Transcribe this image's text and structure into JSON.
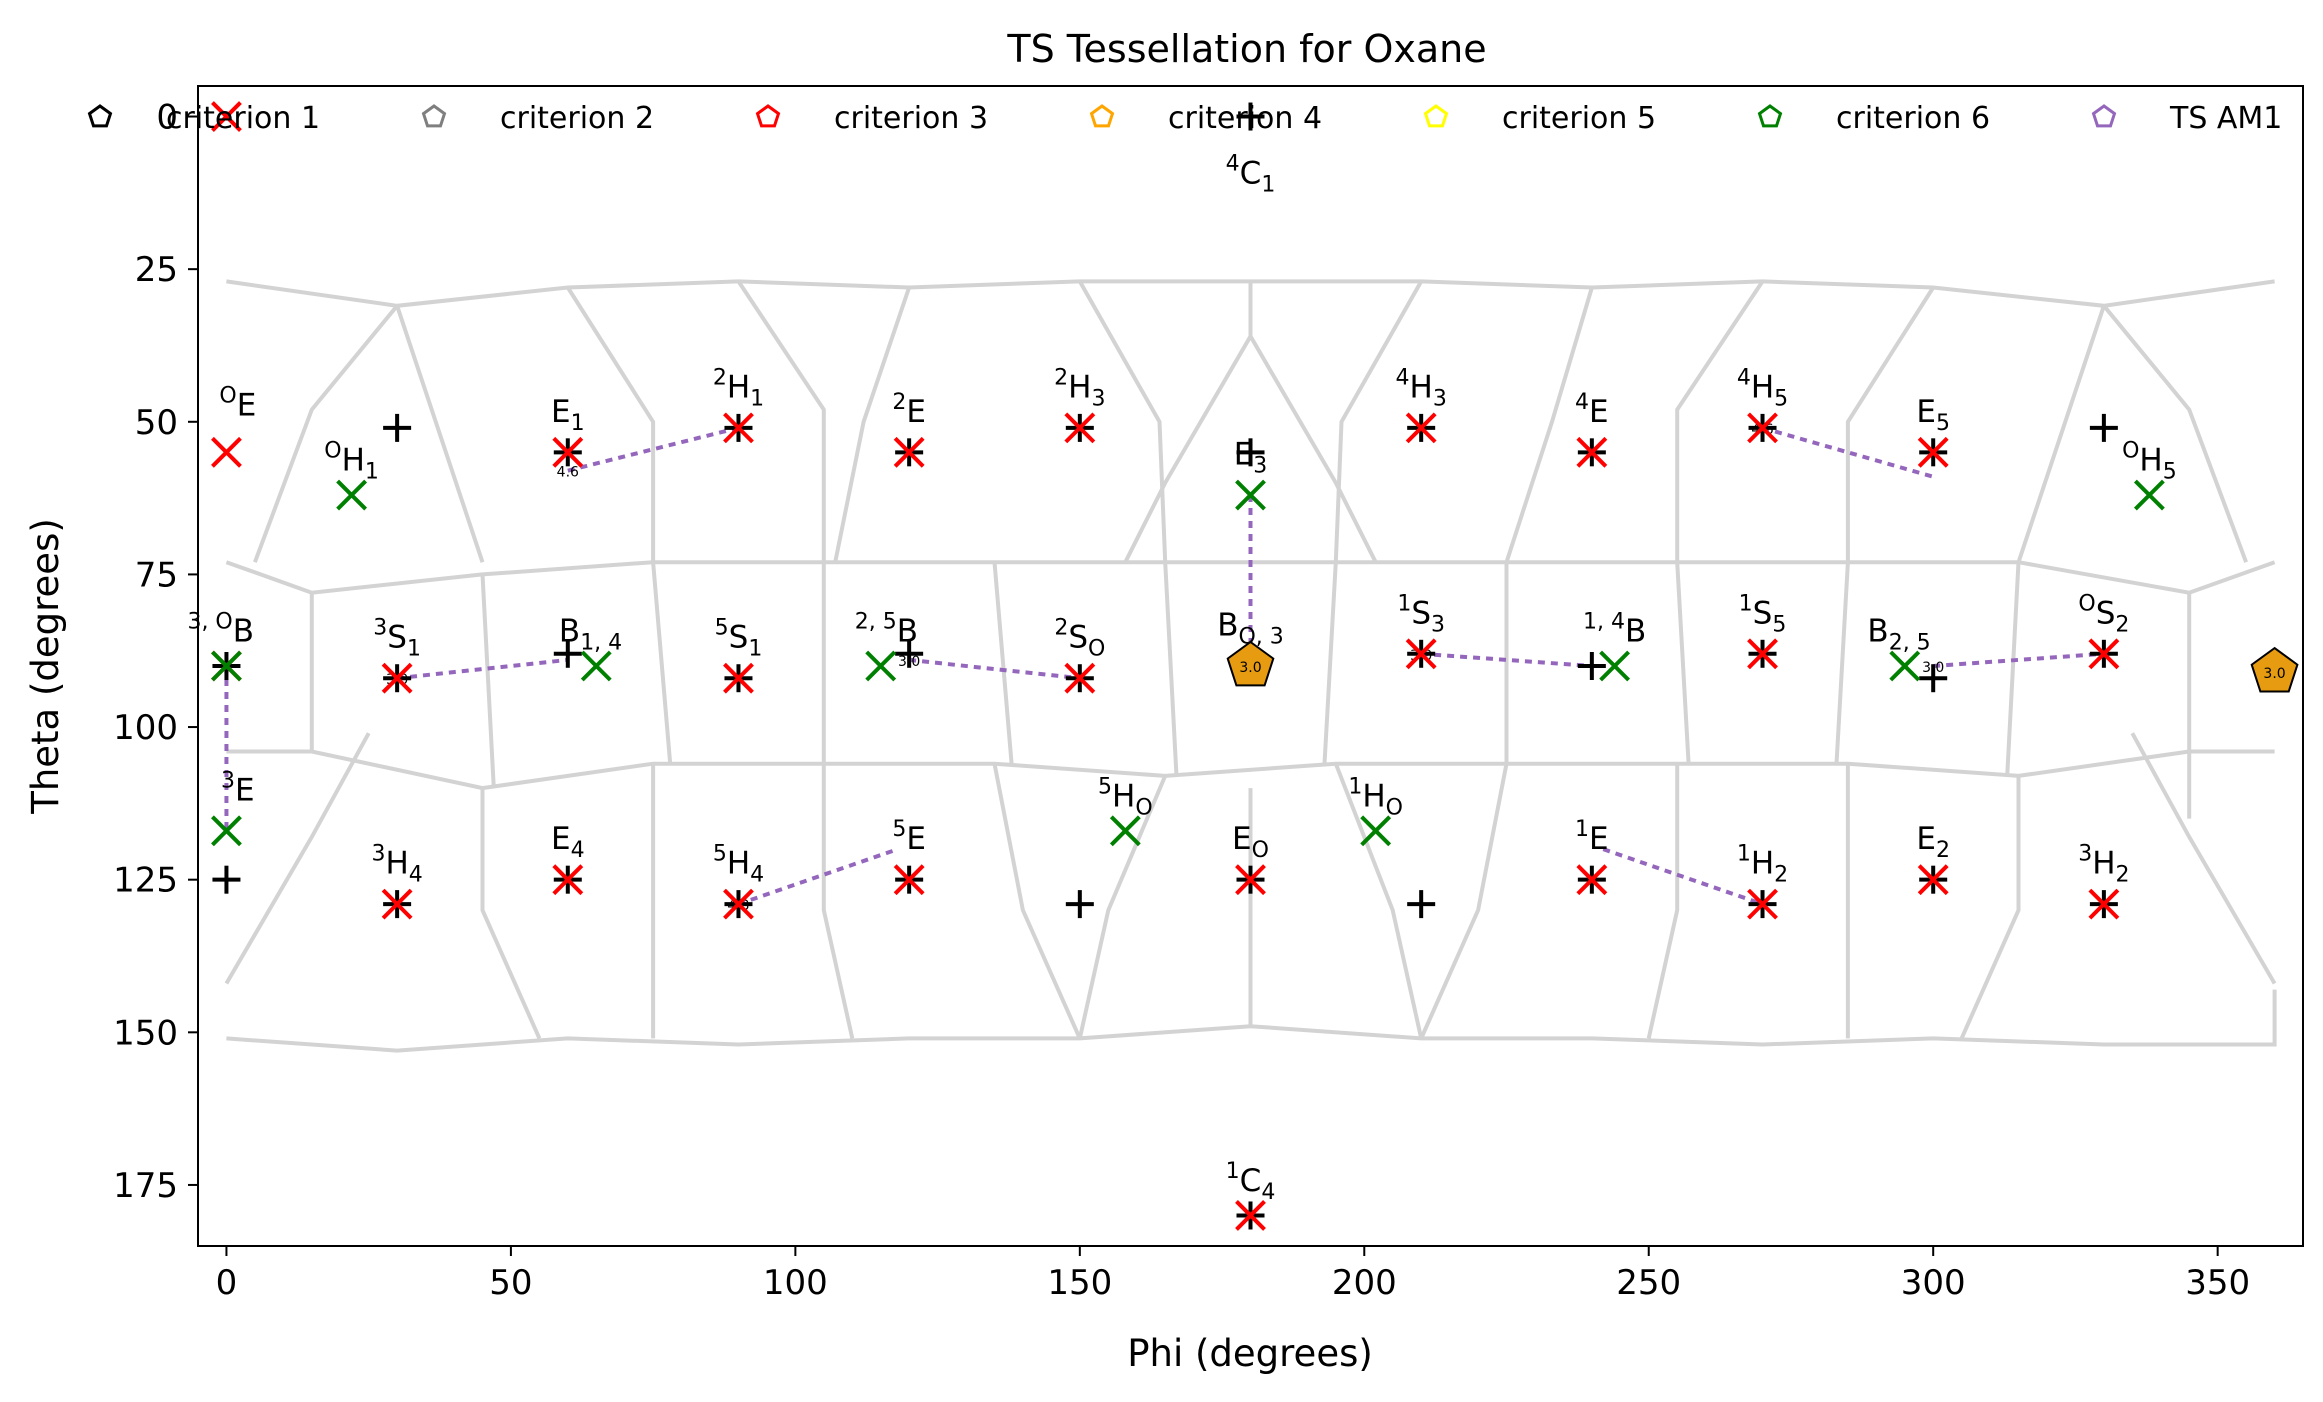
{
  "chart_data": {
    "type": "scatter",
    "title": "TS Tessellation for Oxane",
    "xlabel": "Phi (degrees)",
    "ylabel": "Theta (degrees)",
    "xlim": [
      -5,
      365
    ],
    "ylim": [
      185,
      -5
    ],
    "y_inverted": true,
    "xticks": [
      0,
      50,
      100,
      150,
      200,
      250,
      300,
      350
    ],
    "yticks": [
      0,
      25,
      50,
      75,
      100,
      125,
      150,
      175
    ],
    "grid": false,
    "legend": {
      "placement": "top",
      "entries": [
        {
          "label": "criterion 1",
          "color": "#000000"
        },
        {
          "label": "criterion 2",
          "color": "#7f7f7f"
        },
        {
          "label": "criterion 3",
          "color": "#ff0000"
        },
        {
          "label": "criterion 4",
          "color": "#ffa500"
        },
        {
          "label": "criterion 5",
          "color": "#ffff00"
        },
        {
          "label": "criterion 6",
          "color": "#008000"
        },
        {
          "label": "TS AM1",
          "color": "#9467bd"
        }
      ]
    },
    "colors": {
      "plus": "#000000",
      "red_x": "#ff0000",
      "green_x": "#008000",
      "ts_line": "#9467bd",
      "tessellation": "#d3d3d3",
      "pentagon_fill": "#e69b10"
    },
    "plus_points": [
      [
        180,
        0
      ],
      [
        30,
        51
      ],
      [
        60,
        55
      ],
      [
        90,
        51
      ],
      [
        120,
        55
      ],
      [
        150,
        51
      ],
      [
        180,
        55
      ],
      [
        210,
        51
      ],
      [
        240,
        55
      ],
      [
        270,
        51
      ],
      [
        300,
        55
      ],
      [
        330,
        51
      ],
      [
        0,
        90
      ],
      [
        30,
        92
      ],
      [
        60,
        88
      ],
      [
        90,
        92
      ],
      [
        120,
        88
      ],
      [
        150,
        92
      ],
      [
        180,
        90
      ],
      [
        210,
        88
      ],
      [
        240,
        90
      ],
      [
        270,
        88
      ],
      [
        300,
        92
      ],
      [
        330,
        88
      ],
      [
        0,
        125
      ],
      [
        30,
        129
      ],
      [
        60,
        125
      ],
      [
        90,
        129
      ],
      [
        120,
        125
      ],
      [
        150,
        129
      ],
      [
        180,
        125
      ],
      [
        210,
        129
      ],
      [
        240,
        125
      ],
      [
        270,
        129
      ],
      [
        300,
        125
      ],
      [
        330,
        129
      ],
      [
        180,
        180
      ]
    ],
    "red_x_points": [
      [
        0,
        0
      ],
      [
        0,
        55
      ],
      [
        60,
        55
      ],
      [
        90,
        51
      ],
      [
        120,
        55
      ],
      [
        150,
        51
      ],
      [
        210,
        51
      ],
      [
        240,
        55
      ],
      [
        270,
        51
      ],
      [
        300,
        55
      ],
      [
        0,
        90
      ],
      [
        30,
        92
      ],
      [
        90,
        92
      ],
      [
        150,
        92
      ],
      [
        210,
        88
      ],
      [
        270,
        88
      ],
      [
        330,
        88
      ],
      [
        30,
        129
      ],
      [
        60,
        125
      ],
      [
        90,
        129
      ],
      [
        120,
        125
      ],
      [
        180,
        125
      ],
      [
        240,
        125
      ],
      [
        270,
        129
      ],
      [
        300,
        125
      ],
      [
        330,
        129
      ],
      [
        180,
        180
      ]
    ],
    "green_x_points": [
      [
        22,
        62
      ],
      [
        180,
        62
      ],
      [
        338,
        62
      ],
      [
        0,
        90
      ],
      [
        65,
        90
      ],
      [
        115,
        90
      ],
      [
        244,
        90
      ],
      [
        295,
        90
      ],
      [
        0,
        117
      ],
      [
        158,
        117
      ],
      [
        202,
        117
      ]
    ],
    "pentagons": [
      {
        "phi": 180,
        "theta": 90,
        "tag": "3.0"
      },
      {
        "phi": 360,
        "theta": 91,
        "tag": "3.0"
      }
    ],
    "ts_lines": [
      {
        "from": [
          60,
          58
        ],
        "to": [
          90,
          51
        ],
        "tag": "4.6"
      },
      {
        "from": [
          270,
          51
        ],
        "to": [
          300,
          59
        ],
        "tag": "4.6"
      },
      {
        "from": [
          180,
          62
        ],
        "to": [
          180,
          88
        ],
        "tag": ""
      },
      {
        "from": [
          0,
          90
        ],
        "to": [
          0,
          117
        ],
        "tag": ""
      },
      {
        "from": [
          30,
          92
        ],
        "to": [
          60,
          89
        ],
        "tag": "3.0"
      },
      {
        "from": [
          120,
          89
        ],
        "to": [
          150,
          92
        ],
        "tag": "3.0"
      },
      {
        "from": [
          210,
          88
        ],
        "to": [
          240,
          90
        ],
        "tag": "3.0"
      },
      {
        "from": [
          300,
          90
        ],
        "to": [
          330,
          88
        ],
        "tag": "3.0"
      },
      {
        "from": [
          90,
          129
        ],
        "to": [
          118,
          120
        ],
        "tag": "4.3"
      },
      {
        "from": [
          242,
          120
        ],
        "to": [
          270,
          129
        ],
        "tag": ""
      }
    ],
    "point_labels": [
      {
        "phi": 180,
        "theta": 11,
        "pre": "4",
        "base": "C",
        "sub": "1"
      },
      {
        "phi": 2,
        "theta": 49,
        "pre": "O",
        "base": "E",
        "sub": ""
      },
      {
        "phi": 22,
        "theta": 58,
        "pre": "O",
        "base": "H",
        "sub": "1"
      },
      {
        "phi": 60,
        "theta": 50,
        "pre": "",
        "base": "E",
        "sub": "1"
      },
      {
        "phi": 90,
        "theta": 46,
        "pre": "2",
        "base": "H",
        "sub": "1"
      },
      {
        "phi": 120,
        "theta": 50,
        "pre": "2",
        "base": "E",
        "sub": ""
      },
      {
        "phi": 150,
        "theta": 46,
        "pre": "2",
        "base": "H",
        "sub": "3"
      },
      {
        "phi": 180,
        "theta": 57,
        "pre": "",
        "base": "E",
        "sub": "3"
      },
      {
        "phi": 210,
        "theta": 46,
        "pre": "4",
        "base": "H",
        "sub": "3"
      },
      {
        "phi": 240,
        "theta": 50,
        "pre": "4",
        "base": "E",
        "sub": ""
      },
      {
        "phi": 270,
        "theta": 46,
        "pre": "4",
        "base": "H",
        "sub": "5"
      },
      {
        "phi": 300,
        "theta": 50,
        "pre": "",
        "base": "E",
        "sub": "5"
      },
      {
        "phi": 338,
        "theta": 58,
        "pre": "O",
        "base": "H",
        "sub": "5"
      },
      {
        "phi": -1,
        "theta": 86,
        "pre": "3, O",
        "base": "B",
        "sub": ""
      },
      {
        "phi": 30,
        "theta": 87,
        "pre": "3",
        "base": "S",
        "sub": "1"
      },
      {
        "phi": 64,
        "theta": 86,
        "pre": "",
        "base": "B",
        "sub": "1, 4"
      },
      {
        "phi": 90,
        "theta": 87,
        "pre": "5",
        "base": "S",
        "sub": "1"
      },
      {
        "phi": 116,
        "theta": 86,
        "pre": "2, 5",
        "base": "B",
        "sub": ""
      },
      {
        "phi": 150,
        "theta": 87,
        "pre": "2",
        "base": "S",
        "sub": "O"
      },
      {
        "phi": 180,
        "theta": 85,
        "pre": "",
        "base": "B",
        "sub": "O, 3"
      },
      {
        "phi": 210,
        "theta": 83,
        "pre": "1",
        "base": "S",
        "sub": "3"
      },
      {
        "phi": 244,
        "theta": 86,
        "pre": "1, 4",
        "base": "B",
        "sub": ""
      },
      {
        "phi": 270,
        "theta": 83,
        "pre": "1",
        "base": "S",
        "sub": "5"
      },
      {
        "phi": 294,
        "theta": 86,
        "pre": "",
        "base": "B",
        "sub": "2, 5"
      },
      {
        "phi": 330,
        "theta": 83,
        "pre": "O",
        "base": "S",
        "sub": "2"
      },
      {
        "phi": 2,
        "theta": 112,
        "pre": "3",
        "base": "E",
        "sub": ""
      },
      {
        "phi": 30,
        "theta": 124,
        "pre": "3",
        "base": "H",
        "sub": "4"
      },
      {
        "phi": 60,
        "theta": 120,
        "pre": "",
        "base": "E",
        "sub": "4"
      },
      {
        "phi": 90,
        "theta": 124,
        "pre": "5",
        "base": "H",
        "sub": "4"
      },
      {
        "phi": 120,
        "theta": 120,
        "pre": "5",
        "base": "E",
        "sub": ""
      },
      {
        "phi": 158,
        "theta": 113,
        "pre": "5",
        "base": "H",
        "sub": "O"
      },
      {
        "phi": 180,
        "theta": 120,
        "pre": "",
        "base": "E",
        "sub": "O"
      },
      {
        "phi": 202,
        "theta": 113,
        "pre": "1",
        "base": "H",
        "sub": "O"
      },
      {
        "phi": 240,
        "theta": 120,
        "pre": "1",
        "base": "E",
        "sub": ""
      },
      {
        "phi": 270,
        "theta": 124,
        "pre": "1",
        "base": "H",
        "sub": "2"
      },
      {
        "phi": 300,
        "theta": 120,
        "pre": "",
        "base": "E",
        "sub": "2"
      },
      {
        "phi": 330,
        "theta": 124,
        "pre": "3",
        "base": "H",
        "sub": "2"
      },
      {
        "phi": 180,
        "theta": 176,
        "pre": "1",
        "base": "C",
        "sub": "4"
      }
    ],
    "tessellation": [
      [
        [
          0,
          27
        ],
        [
          30,
          31
        ],
        [
          60,
          28
        ],
        [
          90,
          27
        ],
        [
          120,
          28
        ],
        [
          150,
          27
        ],
        [
          180,
          27
        ],
        [
          210,
          27
        ],
        [
          240,
          28
        ],
        [
          270,
          27
        ],
        [
          300,
          28
        ],
        [
          330,
          31
        ],
        [
          360,
          27
        ]
      ],
      [
        [
          0,
          73
        ],
        [
          15,
          78
        ],
        [
          45,
          75
        ],
        [
          75,
          73
        ],
        [
          105,
          73
        ],
        [
          135,
          73
        ],
        [
          165,
          73
        ],
        [
          195,
          73
        ],
        [
          225,
          73
        ],
        [
          255,
          73
        ],
        [
          285,
          73
        ],
        [
          315,
          73
        ],
        [
          345,
          78
        ],
        [
          360,
          73
        ]
      ],
      [
        [
          0,
          104
        ],
        [
          15,
          104
        ],
        [
          45,
          110
        ],
        [
          75,
          106
        ],
        [
          105,
          106
        ],
        [
          135,
          106
        ],
        [
          165,
          108
        ],
        [
          195,
          106
        ],
        [
          225,
          106
        ],
        [
          255,
          106
        ],
        [
          285,
          106
        ],
        [
          315,
          108
        ],
        [
          345,
          104
        ],
        [
          360,
          104
        ]
      ],
      [
        [
          0,
          151
        ],
        [
          30,
          153
        ],
        [
          60,
          151
        ],
        [
          90,
          152
        ],
        [
          120,
          151
        ],
        [
          150,
          151
        ],
        [
          180,
          149
        ],
        [
          210,
          151
        ],
        [
          240,
          151
        ],
        [
          270,
          152
        ],
        [
          300,
          151
        ],
        [
          330,
          152
        ],
        [
          360,
          152
        ],
        [
          360,
          143
        ]
      ],
      [
        [
          0,
          142
        ],
        [
          15,
          118
        ],
        [
          25,
          101
        ]
      ],
      [
        [
          360,
          142
        ],
        [
          345,
          118
        ],
        [
          335,
          101
        ]
      ],
      [
        [
          5,
          73
        ],
        [
          15,
          48
        ],
        [
          30,
          31
        ]
      ],
      [
        [
          355,
          73
        ],
        [
          345,
          48
        ],
        [
          330,
          31
        ]
      ],
      [
        [
          30,
          31
        ],
        [
          45,
          73
        ]
      ],
      [
        [
          330,
          31
        ],
        [
          315,
          73
        ]
      ],
      [
        [
          60,
          28
        ],
        [
          75,
          50
        ],
        [
          75,
          73
        ]
      ],
      [
        [
          90,
          27
        ],
        [
          105,
          48
        ],
        [
          105,
          73
        ]
      ],
      [
        [
          120,
          28
        ],
        [
          112,
          50
        ],
        [
          107,
          73
        ]
      ],
      [
        [
          150,
          27
        ],
        [
          164,
          50
        ],
        [
          165,
          73
        ]
      ],
      [
        [
          180,
          27
        ],
        [
          180,
          36
        ],
        [
          165,
          60
        ],
        [
          158,
          73
        ]
      ],
      [
        [
          180,
          36
        ],
        [
          195,
          60
        ],
        [
          202,
          73
        ]
      ],
      [
        [
          210,
          27
        ],
        [
          196,
          50
        ],
        [
          195,
          73
        ]
      ],
      [
        [
          240,
          28
        ],
        [
          233,
          50
        ],
        [
          225,
          73
        ]
      ],
      [
        [
          270,
          27
        ],
        [
          255,
          48
        ],
        [
          255,
          73
        ]
      ],
      [
        [
          300,
          28
        ],
        [
          285,
          50
        ],
        [
          285,
          73
        ]
      ],
      [
        [
          15,
          78
        ],
        [
          15,
          104
        ]
      ],
      [
        [
          45,
          75
        ],
        [
          47,
          110
        ]
      ],
      [
        [
          75,
          73
        ],
        [
          78,
          106
        ]
      ],
      [
        [
          105,
          73
        ],
        [
          105,
          106
        ]
      ],
      [
        [
          135,
          73
        ],
        [
          138,
          106
        ]
      ],
      [
        [
          165,
          73
        ],
        [
          167,
          108
        ]
      ],
      [
        [
          195,
          73
        ],
        [
          193,
          106
        ]
      ],
      [
        [
          225,
          73
        ],
        [
          225,
          106
        ]
      ],
      [
        [
          255,
          73
        ],
        [
          257,
          106
        ]
      ],
      [
        [
          285,
          73
        ],
        [
          283,
          106
        ]
      ],
      [
        [
          315,
          73
        ],
        [
          313,
          108
        ]
      ],
      [
        [
          345,
          78
        ],
        [
          345,
          104
        ]
      ],
      [
        [
          45,
          110
        ],
        [
          45,
          130
        ],
        [
          55,
          151
        ]
      ],
      [
        [
          75,
          106
        ],
        [
          75,
          130
        ],
        [
          75,
          151
        ]
      ],
      [
        [
          105,
          106
        ],
        [
          105,
          130
        ],
        [
          110,
          151
        ]
      ],
      [
        [
          135,
          106
        ],
        [
          140,
          130
        ],
        [
          150,
          151
        ]
      ],
      [
        [
          165,
          108
        ],
        [
          155,
          130
        ],
        [
          150,
          151
        ]
      ],
      [
        [
          180,
          110
        ],
        [
          180,
          149
        ]
      ],
      [
        [
          195,
          106
        ],
        [
          205,
          130
        ],
        [
          210,
          151
        ]
      ],
      [
        [
          225,
          106
        ],
        [
          220,
          130
        ],
        [
          210,
          151
        ]
      ],
      [
        [
          255,
          106
        ],
        [
          255,
          130
        ],
        [
          250,
          151
        ]
      ],
      [
        [
          285,
          106
        ],
        [
          285,
          130
        ],
        [
          285,
          151
        ]
      ],
      [
        [
          315,
          108
        ],
        [
          315,
          130
        ],
        [
          305,
          151
        ]
      ],
      [
        [
          345,
          104
        ],
        [
          345,
          115
        ]
      ]
    ]
  }
}
